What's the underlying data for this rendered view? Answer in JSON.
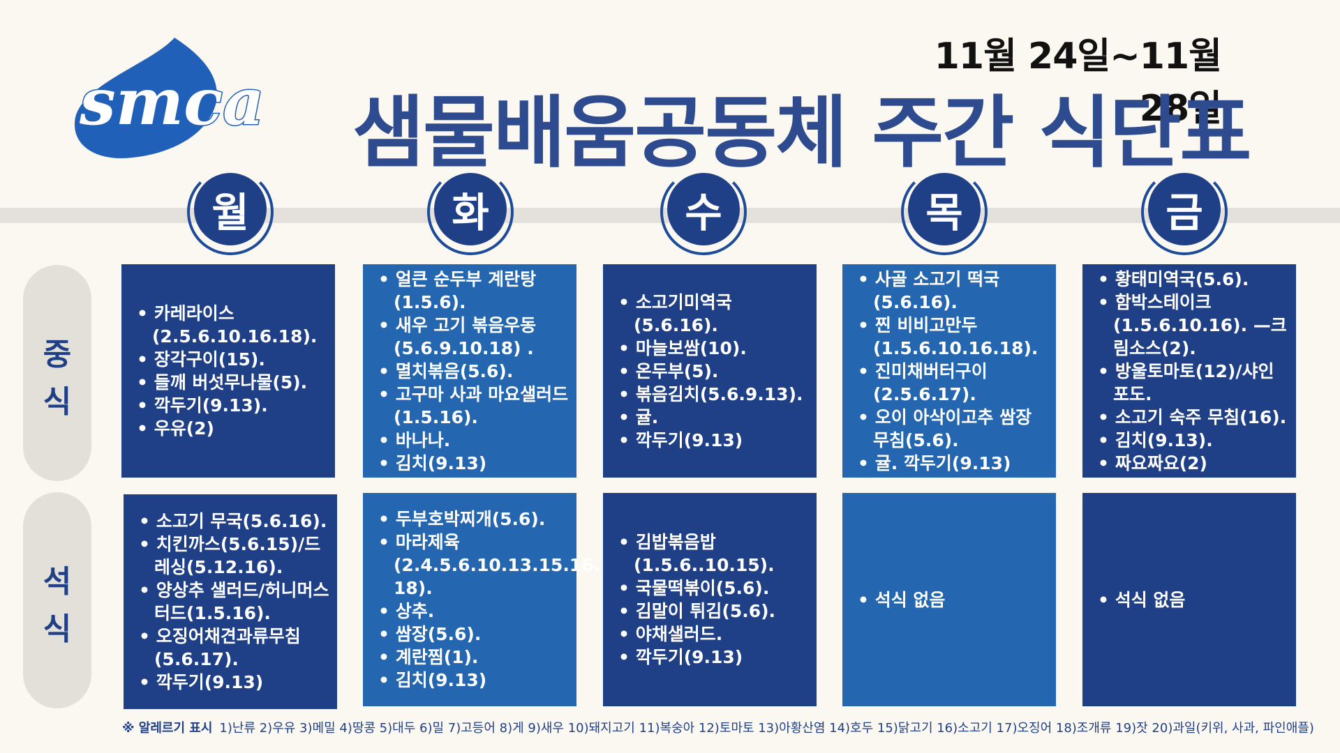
{
  "header": {
    "logo_text": "smca",
    "date_range": "11월 24일~11월 28일",
    "title": "샘물배움공동체 주간 식단표"
  },
  "days": [
    "월",
    "화",
    "수",
    "목",
    "금"
  ],
  "meals": [
    "중식",
    "석식"
  ],
  "colors": {
    "primary": "#1f3f86",
    "secondary": "#2467b0",
    "logo": "#2060b8",
    "background": "#fbf8f1"
  },
  "lunch": [
    [
      "카레라이스 (2.5.6.10.16.18).",
      "장각구이(15).",
      "들깨 버섯무나물(5).",
      "깍두기(9.13).",
      "우유(2)"
    ],
    [
      "얼큰 순두부 계란탕 (1.5.6).",
      "새우 고기 볶음우동 (5.6.9.10.18) .",
      "멸치볶음(5.6).",
      "고구마 사과 마요샐러드(1.5.16).",
      "바나나.",
      "김치(9.13)"
    ],
    [
      "소고기미역국(5.6.16).",
      "마늘보쌈(10).",
      "온두부(5).",
      "볶음김치(5.6.9.13).",
      "귤.",
      "깍두기(9.13)"
    ],
    [
      "사골 소고기 떡국 (5.6.16).",
      " 찐 비비고만두 (1.5.6.10.16.18).",
      "진미채버터구이 (2.5.6.17).",
      "오이 아삭이고추 쌈장 무침(5.6).",
      "귤. 깍두기(9.13)"
    ],
    [
      "황태미역국(5.6).",
      "함박스테이크 (1.5.6.10.16). —크림소스(2).",
      "방울토마토(12)/샤인포도.",
      "소고기 숙주 무침(16).",
      "김치(9.13).",
      "짜요짜요(2)"
    ]
  ],
  "dinner": [
    [
      "소고기 무국(5.6.16).",
      "치킨까스(5.6.15)/드레싱(5.12.16).",
      "양상추 샐러드/허니머스터드(1.5.16).",
      "오징어채견과류무침 (5.6.17).",
      "깍두기(9.13)"
    ],
    [
      "두부호박찌개(5.6).",
      "마라제육 (2.4.5.6.10.13.15.16. 18).",
      "상추.",
      "쌈장(5.6).",
      "계란찜(1).",
      "김치(9.13)"
    ],
    [
      "김밥볶음밥 (1.5.6..10.15).",
      "국물떡볶이(5.6).",
      "김말이 튀김(5.6).",
      "야채샐러드.",
      "깍두기(9.13)"
    ],
    [
      "석식 없음"
    ],
    [
      "석식 없음"
    ]
  ],
  "footnote": {
    "label": "※ 알레르기 표시",
    "text": "1)난류 2)우유 3)메밀 4)땅콩 5)대두 6)밀 7)고등어 8)게 9)새우 10)돼지고기 11)복숭아 12)토마토 13)아황산염 14)호두 15)닭고기 16)소고기 17)오징어 18)조개류 19)잣 20)과일(키위, 사과, 파인애플)"
  }
}
